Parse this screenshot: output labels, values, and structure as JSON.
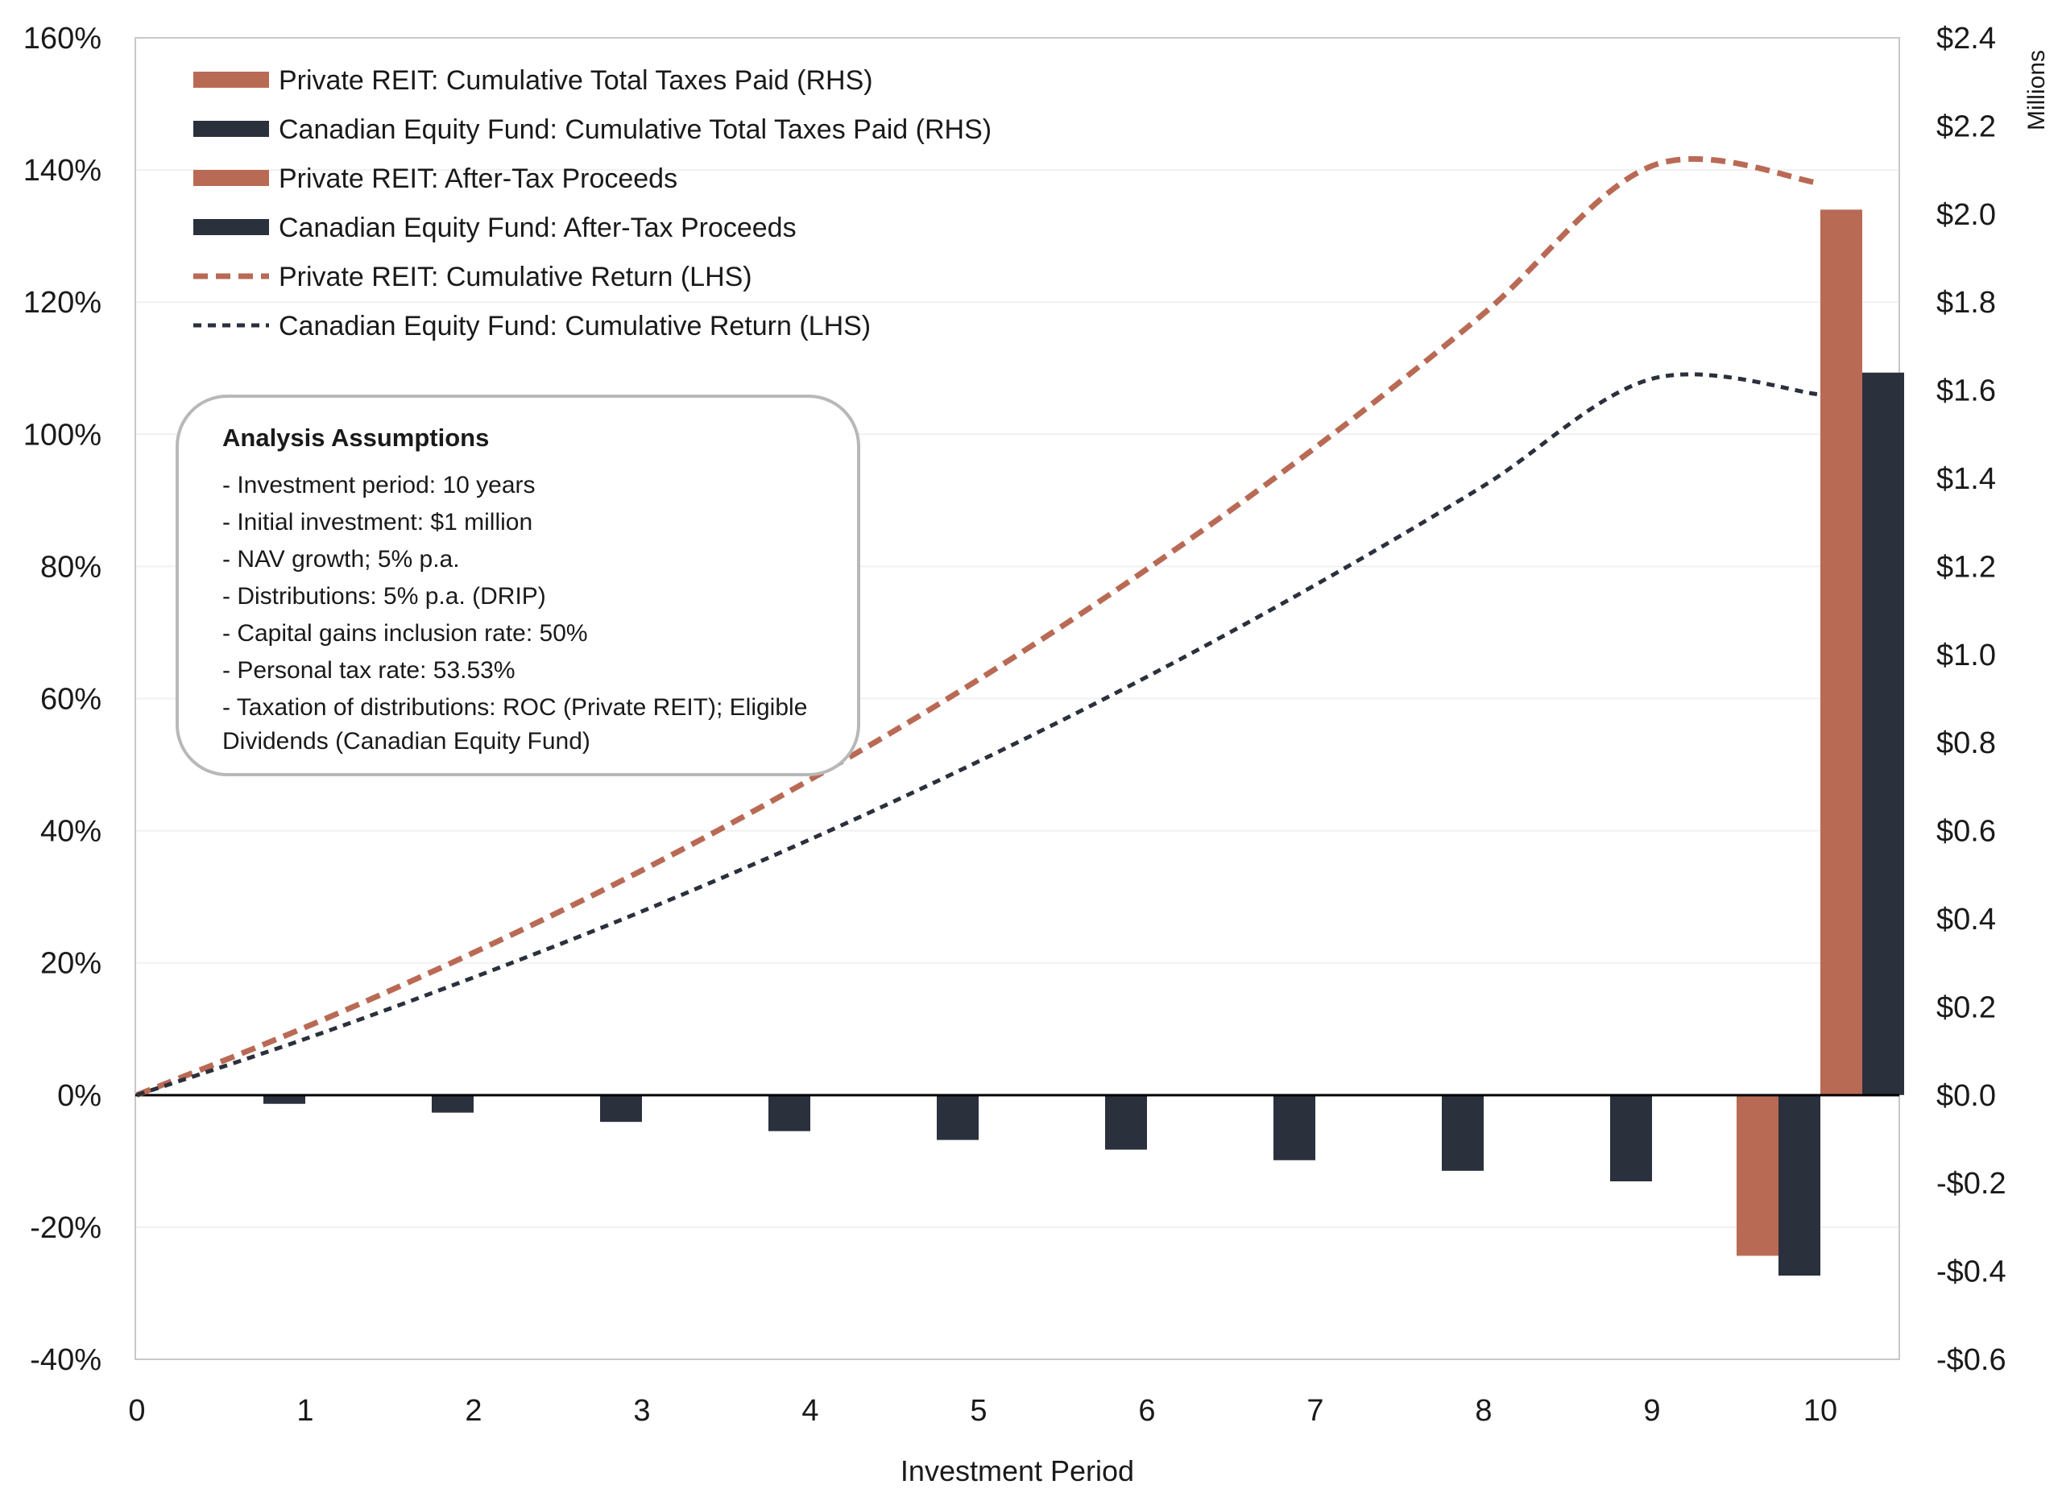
{
  "chart_data": {
    "type": "bar+line",
    "xlabel": "Investment Period",
    "x": [
      0,
      1,
      2,
      3,
      4,
      5,
      6,
      7,
      8,
      9,
      10
    ],
    "x_tick_labels": [
      "0",
      "1",
      "2",
      "3",
      "4",
      "5",
      "6",
      "7",
      "8",
      "9",
      "10"
    ],
    "y_left": {
      "ylim": [
        -0.4,
        1.6
      ],
      "ticks": [
        -0.4,
        -0.2,
        0,
        0.2,
        0.4,
        0.6,
        0.8,
        1.0,
        1.2,
        1.4,
        1.6
      ],
      "tick_labels": [
        "-40%",
        "-20%",
        "0%",
        "20%",
        "40%",
        "60%",
        "80%",
        "100%",
        "120%",
        "140%",
        "160%"
      ]
    },
    "y_right": {
      "ylim": [
        -0.6,
        2.4
      ],
      "ticks": [
        -0.6,
        -0.4,
        -0.2,
        0,
        0.2,
        0.4,
        0.6,
        0.8,
        1.0,
        1.2,
        1.4,
        1.6,
        1.8,
        2.0,
        2.2,
        2.4
      ],
      "tick_labels": [
        "-$0.6",
        "-$0.4",
        "-$0.2",
        "$0.0",
        "$0.2",
        "$0.4",
        "$0.6",
        "$0.8",
        "$1.0",
        "$1.2",
        "$1.4",
        "$1.6",
        "$1.8",
        "$2.0",
        "$2.2",
        "$2.4"
      ],
      "units_label": "Millions"
    },
    "grid": "horizontal",
    "legend_position": "top-left",
    "series": [
      {
        "name": "Private REIT: Cumulative Total Taxes Paid (RHS)",
        "kind": "bar",
        "axis": "right",
        "color": "#b96a55",
        "slot": "left",
        "values": [
          null,
          0,
          0,
          0,
          0,
          0,
          0,
          0,
          0,
          0,
          -0.365
        ]
      },
      {
        "name": "Canadian Equity Fund: Cumulative Total Taxes Paid (RHS)",
        "kind": "bar",
        "axis": "right",
        "color": "#2b303d",
        "slot": "right",
        "values": [
          null,
          -0.02,
          -0.04,
          -0.061,
          -0.082,
          -0.102,
          -0.124,
          -0.148,
          -0.172,
          -0.196,
          -0.41
        ]
      },
      {
        "name": "Private REIT: After-Tax Proceeds",
        "kind": "bar",
        "axis": "right",
        "color": "#b96a55",
        "slot": "after-left",
        "values": [
          null,
          null,
          null,
          null,
          null,
          null,
          null,
          null,
          null,
          null,
          2.01
        ]
      },
      {
        "name": "Canadian Equity Fund: After-Tax Proceeds",
        "kind": "bar",
        "axis": "right",
        "color": "#2b303d",
        "slot": "after-right",
        "values": [
          null,
          null,
          null,
          null,
          null,
          null,
          null,
          null,
          null,
          null,
          1.64
        ]
      },
      {
        "name": "Private REIT: Cumulative Return (LHS)",
        "kind": "line",
        "axis": "left",
        "color": "#b96a55",
        "dash": "long",
        "values": [
          0,
          0.1025,
          0.2155,
          0.34,
          0.4775,
          0.6289,
          0.7959,
          0.9799,
          1.1826,
          1.4062,
          1.38
        ]
      },
      {
        "name": "Canadian Equity Fund: Cumulative Return (LHS)",
        "kind": "line",
        "axis": "left",
        "color": "#2b303d",
        "dash": "short",
        "values": [
          0,
          0.085,
          0.178,
          0.278,
          0.387,
          0.505,
          0.633,
          0.772,
          0.922,
          1.084,
          1.06
        ]
      }
    ]
  },
  "assumptions": {
    "title": "Analysis Assumptions",
    "items": [
      "- Investment period: 10 years",
      "- Initial investment: $1 million",
      "- NAV growth; 5% p.a.",
      "- Distributions: 5% p.a. (DRIP)",
      "- Capital gains inclusion rate: 50%",
      "- Personal tax rate: 53.53%",
      "- Taxation of distributions: ROC (Private REIT); Eligible Dividends (Canadian Equity Fund)"
    ]
  }
}
